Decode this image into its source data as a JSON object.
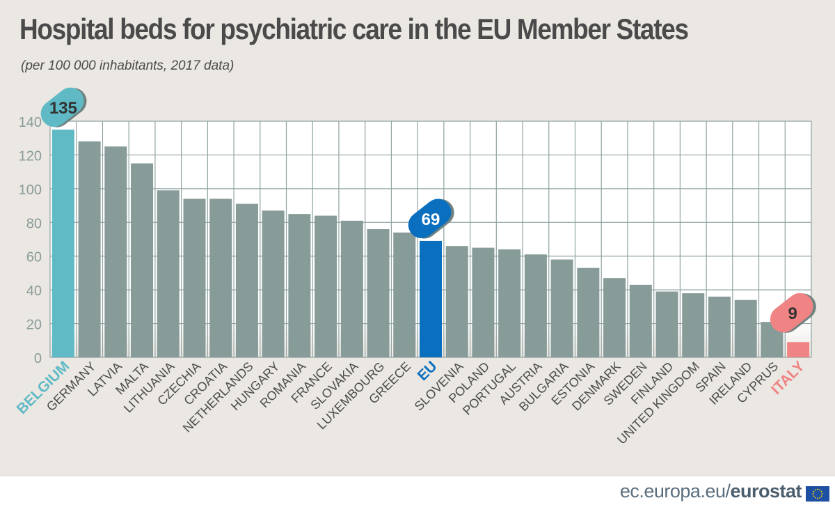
{
  "title": "Hospital beds for psychiatric care in the EU Member States",
  "subtitle": "(per 100 000 inhabitants, 2017 data)",
  "footer": {
    "source_prefix": "ec.europa.eu/",
    "source_brand": "eurostat",
    "flag_icon": "eu-flag-icon"
  },
  "colors": {
    "default": "#879b99",
    "highest": "#5fbac6",
    "eu": "#0b6fbf",
    "lowest": "#f08484",
    "grid": "#8fa3a1"
  },
  "chart_data": {
    "type": "bar",
    "title": "Hospital beds for psychiatric care in the EU Member States",
    "subtitle": "(per 100 000 inhabitants, 2017 data)",
    "categories": [
      "BELGIUM",
      "GERMANY",
      "LATVIA",
      "MALTA",
      "LITHUANIA",
      "CZECHIA",
      "CROATIA",
      "NETHERLANDS",
      "HUNGARY",
      "ROMANIA",
      "FRANCE",
      "SLOVAKIA",
      "LUXEMBOURG",
      "GREECE",
      "EU",
      "SLOVENIA",
      "POLAND",
      "PORTUGAL",
      "AUSTRIA",
      "BULGARIA",
      "ESTONIA",
      "DENMARK",
      "SWEDEN",
      "FINLAND",
      "UNITED KINGDOM",
      "SPAIN",
      "IRELAND",
      "CYPRUS",
      "ITALY"
    ],
    "values": [
      135,
      128,
      125,
      115,
      99,
      94,
      94,
      91,
      87,
      85,
      84,
      81,
      76,
      74,
      69,
      66,
      65,
      64,
      61,
      58,
      53,
      47,
      43,
      39,
      38,
      36,
      34,
      21,
      9
    ],
    "highlights": {
      "BELGIUM": "highest",
      "EU": "eu",
      "ITALY": "lowest"
    },
    "data_labels": [
      {
        "category": "BELGIUM",
        "text": "135"
      },
      {
        "category": "EU",
        "text": "69"
      },
      {
        "category": "ITALY",
        "text": "9"
      }
    ],
    "yticks": [
      "0",
      "20",
      "40",
      "60",
      "80",
      "100",
      "120",
      "140"
    ],
    "ylim": [
      0,
      140
    ],
    "grid": true,
    "xlabel": "",
    "ylabel": ""
  }
}
